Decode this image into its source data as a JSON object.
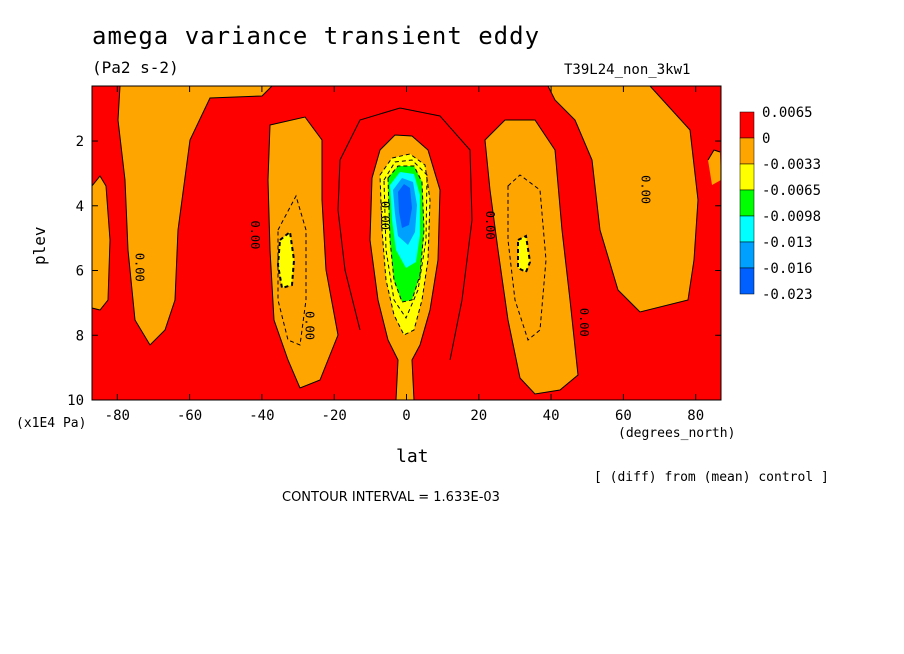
{
  "header": {
    "title": "amega variance transient eddy",
    "units": "(Pa2 s-2)",
    "run_id": "T39L24_non_3kw1"
  },
  "axes": {
    "ylabel": "plev",
    "ylabel_units": "(x1E4 Pa)",
    "xlabel": "lat",
    "xlabel_units": "(degrees_north)"
  },
  "footer": {
    "diff_note": "[ (diff) from (mean) control ]",
    "contour_interval": "CONTOUR INTERVAL = 1.633E-03"
  },
  "colors": {
    "red": "#ff0000",
    "orange": "#ffa500",
    "yellow": "#ffff00",
    "green": "#00ff00",
    "cyan": "#00ffff",
    "sky": "#00a0ff",
    "blue": "#0060ff"
  },
  "chart_data": {
    "type": "heatmap",
    "title": "amega variance transient eddy",
    "subtitle": "(Pa2 s-2)",
    "xlabel": "lat",
    "ylabel": "plev",
    "xlim": [
      -87,
      87
    ],
    "ylim": [
      10,
      0.3
    ],
    "x_ticks": [
      -80,
      -60,
      -40,
      -20,
      0,
      20,
      40,
      60,
      80
    ],
    "y_ticks": [
      2,
      4,
      6,
      8,
      10
    ],
    "colorbar": {
      "levels": [
        "0.0065",
        "0",
        "-0.0033",
        "-0.0065",
        "-0.0098",
        "-0.013",
        "-0.016",
        "-0.023"
      ],
      "colors": [
        "#ff0000",
        "#ffa500",
        "#ffff00",
        "#00ff00",
        "#00ffff",
        "#00a0ff",
        "#0060ff"
      ]
    },
    "contour_labels": [
      {
        "text": "0.00",
        "lat": -75,
        "plev": 5.9
      },
      {
        "text": "0.00",
        "lat": -43,
        "plev": 4.9
      },
      {
        "text": "0.00",
        "lat": -28,
        "plev": 7.7
      },
      {
        "text": "0.00",
        "lat": -7,
        "plev": 4.3
      },
      {
        "text": "0.00",
        "lat": 22,
        "plev": 4.6
      },
      {
        "text": "0.00",
        "lat": 48,
        "plev": 7.6
      },
      {
        "text": "0.00",
        "lat": 65,
        "plev": 3.5
      }
    ],
    "contour_interval": 0.001633,
    "legend_placement": "right"
  }
}
